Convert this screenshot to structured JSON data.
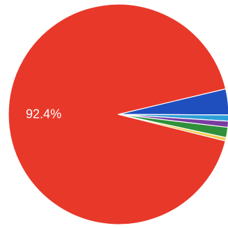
{
  "chart_data": {
    "type": "pie",
    "title": "",
    "slices": [
      {
        "value": 92.4,
        "color": "#e8382a",
        "label": "92.4%"
      },
      {
        "value": 3.8,
        "color": "#1f4fbf",
        "label": ""
      },
      {
        "value": 0.9,
        "color": "#2d9fd8",
        "label": ""
      },
      {
        "value": 0.9,
        "color": "#7a3ca0",
        "label": ""
      },
      {
        "value": 1.5,
        "color": "#2f8f3a",
        "label": ""
      },
      {
        "value": 0.5,
        "color": "#f2c94c",
        "label": ""
      }
    ]
  }
}
